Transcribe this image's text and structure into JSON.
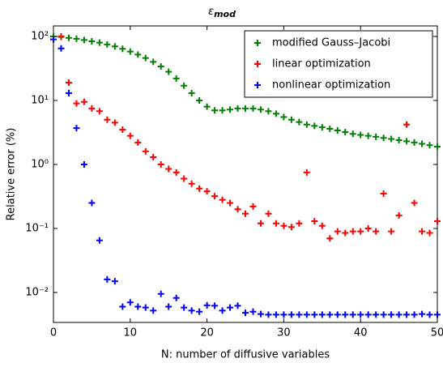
{
  "chart_data": {
    "type": "scatter",
    "title": {
      "symbol": "ε",
      "subscript": "mod"
    },
    "x_label": "N: number of diffusive variables",
    "y_label": "Relative error (%)",
    "x": [
      0,
      1,
      2,
      3,
      4,
      5,
      6,
      7,
      8,
      9,
      10,
      11,
      12,
      13,
      14,
      15,
      16,
      17,
      18,
      19,
      20,
      21,
      22,
      23,
      24,
      25,
      26,
      27,
      28,
      29,
      30,
      31,
      32,
      33,
      34,
      35,
      36,
      37,
      38,
      39,
      40,
      41,
      42,
      43,
      44,
      45,
      46,
      47,
      48,
      49,
      50
    ],
    "series": [
      {
        "name": "modified Gauss–Jacobi",
        "color": "#008000",
        "values": [
          100,
          98,
          95,
          92,
          88,
          84,
          80,
          75,
          70,
          64,
          58,
          52,
          46,
          40,
          34,
          28,
          22,
          17,
          13,
          10,
          8,
          7,
          7,
          7.2,
          7.5,
          7.5,
          7.5,
          7.2,
          6.8,
          6.2,
          5.5,
          5,
          4.6,
          4.2,
          4,
          3.8,
          3.6,
          3.4,
          3.2,
          3.0,
          2.9,
          2.8,
          2.7,
          2.6,
          2.5,
          2.4,
          2.3,
          2.2,
          2.1,
          2.0,
          1.9
        ]
      },
      {
        "name": "linear optimization",
        "color": "#ff0000",
        "values": [
          null,
          100,
          19,
          9,
          9.5,
          7.5,
          6.8,
          5,
          4.5,
          3.5,
          2.8,
          2.2,
          1.6,
          1.3,
          1.0,
          0.85,
          0.75,
          0.6,
          0.5,
          0.42,
          0.38,
          0.32,
          0.28,
          0.25,
          0.2,
          0.17,
          0.22,
          0.12,
          0.17,
          0.12,
          0.11,
          0.105,
          0.12,
          0.75,
          0.13,
          0.11,
          0.07,
          0.09,
          0.085,
          0.09,
          0.09,
          0.1,
          0.09,
          0.35,
          0.09,
          0.16,
          4.2,
          0.25,
          0.09,
          0.085,
          0.13
        ]
      },
      {
        "name": "nonlinear optimization",
        "color": "#0000ff",
        "values": [
          90,
          65,
          13,
          3.7,
          1.0,
          0.25,
          0.065,
          0.016,
          0.015,
          0.006,
          0.007,
          0.006,
          0.0058,
          0.0052,
          0.0095,
          0.006,
          0.0082,
          0.0058,
          0.0052,
          0.005,
          0.0063,
          0.0062,
          0.0052,
          0.0058,
          0.0062,
          0.0048,
          0.005,
          0.0046,
          0.0045,
          0.0045,
          0.0045,
          0.0045,
          0.0045,
          0.0045,
          0.0045,
          0.0045,
          0.0045,
          0.0045,
          0.0045,
          0.0045,
          0.0045,
          0.0045,
          0.0045,
          0.0045,
          0.0045,
          0.0045,
          0.0045,
          0.0045,
          0.0046,
          0.0045,
          0.0045
        ]
      }
    ],
    "xlim": [
      0,
      50
    ],
    "xticks": [
      0,
      10,
      20,
      30,
      40,
      50
    ],
    "ylim": [
      0.0034,
      146
    ],
    "yticks": [
      {
        "value": 0.01,
        "label": "10⁻²"
      },
      {
        "value": 0.1,
        "label": "10⁻¹"
      },
      {
        "value": 1,
        "label": "10⁰"
      },
      {
        "value": 10,
        "label": "10¹"
      },
      {
        "value": 100,
        "label": "10²"
      }
    ],
    "log_y": true,
    "legend": "upper right"
  }
}
